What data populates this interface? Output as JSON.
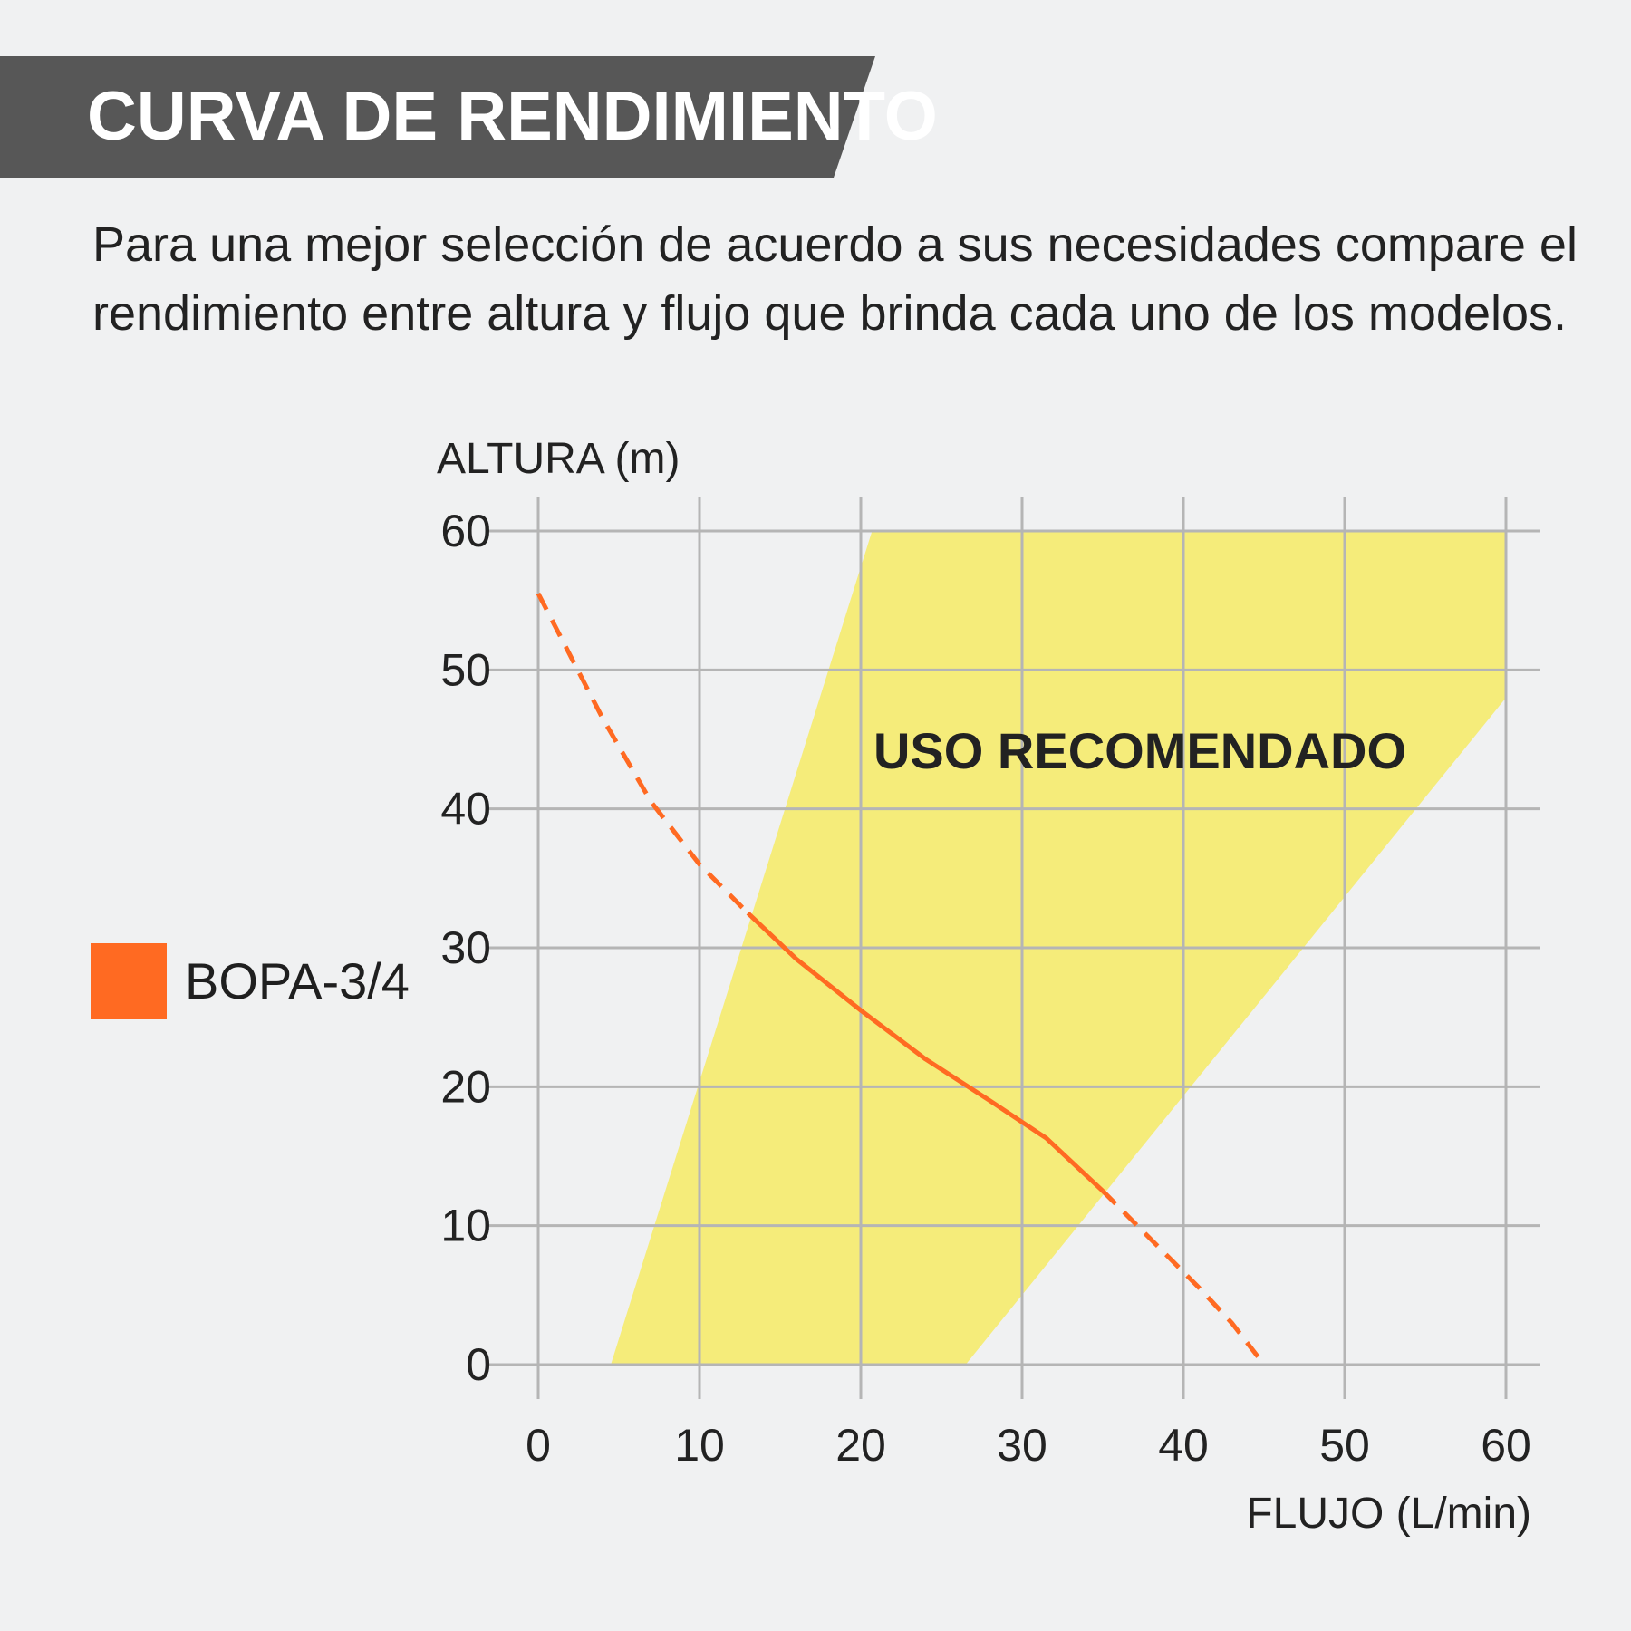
{
  "header": {
    "title": "CURVA DE RENDIMIENTO",
    "band_color": "#575757"
  },
  "intro_text": "Para una mejor selección de acuerdo a sus necesidades compare el rendimiento entre altura y flujo que brinda cada uno de los modelos.",
  "legend": {
    "items": [
      {
        "label": "BOPA-3/4",
        "color": "#ff6a22"
      }
    ]
  },
  "chart_data": {
    "type": "line",
    "xlabel": "FLUJO (L/min)",
    "ylabel": "ALTURA (m)",
    "xlim": [
      0,
      60
    ],
    "ylim": [
      0,
      60
    ],
    "xticks": [
      0,
      10,
      20,
      30,
      40,
      50,
      60
    ],
    "yticks": [
      0,
      10,
      20,
      30,
      40,
      50,
      60
    ],
    "grid": true,
    "grid_color": "#b5b5b5",
    "region": {
      "label": "USO RECOMENDADO",
      "color": "#f5ec7a",
      "polygon": [
        [
          4.5,
          0
        ],
        [
          20.7,
          60
        ],
        [
          60,
          60
        ],
        [
          60,
          48
        ],
        [
          26.5,
          0
        ]
      ]
    },
    "series": [
      {
        "name": "BOPA-3/4",
        "color": "#ff6a22",
        "points": [
          [
            0,
            55.5
          ],
          [
            2,
            51
          ],
          [
            4,
            46.5
          ],
          [
            7,
            40.5
          ],
          [
            10,
            36
          ],
          [
            13,
            32.5
          ],
          [
            16,
            29.2
          ],
          [
            20,
            25.5
          ],
          [
            24,
            22
          ],
          [
            28,
            19
          ],
          [
            31.5,
            16.3
          ],
          [
            35,
            12.5
          ],
          [
            38,
            9
          ],
          [
            41,
            5.5
          ],
          [
            43,
            3
          ],
          [
            45,
            0
          ]
        ],
        "solid_range": [
          13,
          35
        ]
      }
    ]
  }
}
